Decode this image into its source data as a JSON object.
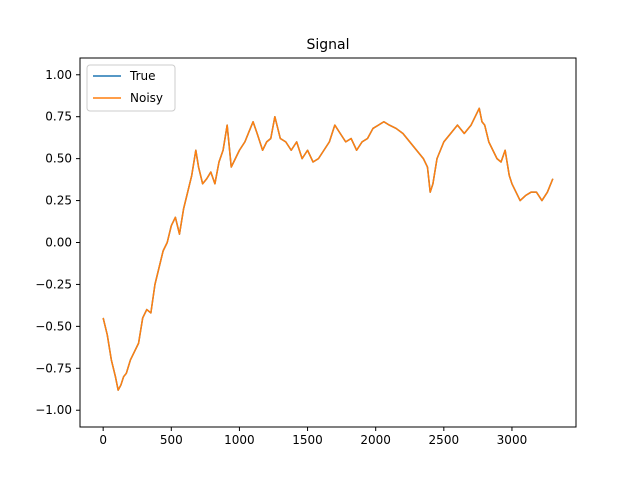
{
  "chart_data": {
    "type": "line",
    "title": "Signal",
    "xlabel": "",
    "ylabel": "",
    "xlim": [
      -170,
      3470
    ],
    "ylim": [
      -1.1,
      1.1
    ],
    "xticks": [
      0,
      500,
      1000,
      1500,
      2000,
      2500,
      3000
    ],
    "xtick_labels": [
      "0",
      "500",
      "1000",
      "1500",
      "2000",
      "2500",
      "3000"
    ],
    "yticks": [
      -1.0,
      -0.75,
      -0.5,
      -0.25,
      0.0,
      0.25,
      0.5,
      0.75,
      1.0
    ],
    "ytick_labels": [
      "−1.00",
      "−0.75",
      "−0.50",
      "−0.25",
      "0.00",
      "0.25",
      "0.50",
      "0.75",
      "1.00"
    ],
    "grid": false,
    "legend_position": "top-left",
    "series": [
      {
        "name": "True",
        "color": "#1f77b4",
        "x": [
          0,
          30,
          60,
          90,
          110,
          130,
          150,
          170,
          200,
          230,
          260,
          290,
          320,
          350,
          380,
          410,
          440,
          470,
          500,
          530,
          560,
          590,
          620,
          650,
          680,
          700,
          730,
          760,
          790,
          820,
          850,
          880,
          910,
          940,
          970,
          1000,
          1040,
          1080,
          1100,
          1130,
          1170,
          1200,
          1230,
          1260,
          1300,
          1340,
          1380,
          1420,
          1460,
          1500,
          1540,
          1580,
          1620,
          1660,
          1700,
          1740,
          1780,
          1820,
          1860,
          1900,
          1940,
          1980,
          2020,
          2060,
          2100,
          2150,
          2200,
          2250,
          2300,
          2350,
          2380,
          2400,
          2420,
          2450,
          2500,
          2550,
          2600,
          2650,
          2700,
          2730,
          2760,
          2780,
          2800,
          2830,
          2860,
          2890,
          2920,
          2950,
          2980,
          3000,
          3030,
          3060,
          3100,
          3140,
          3180,
          3220,
          3260,
          3300
        ],
        "y": [
          -0.45,
          -0.55,
          -0.7,
          -0.8,
          -0.88,
          -0.85,
          -0.8,
          -0.78,
          -0.7,
          -0.65,
          -0.6,
          -0.45,
          -0.4,
          -0.42,
          -0.25,
          -0.15,
          -0.05,
          0.0,
          0.1,
          0.15,
          0.05,
          0.2,
          0.3,
          0.4,
          0.55,
          0.45,
          0.35,
          0.38,
          0.42,
          0.35,
          0.48,
          0.55,
          0.7,
          0.45,
          0.5,
          0.55,
          0.6,
          0.68,
          0.72,
          0.65,
          0.55,
          0.6,
          0.62,
          0.75,
          0.62,
          0.6,
          0.55,
          0.6,
          0.5,
          0.55,
          0.48,
          0.5,
          0.55,
          0.6,
          0.7,
          0.65,
          0.6,
          0.62,
          0.55,
          0.6,
          0.62,
          0.68,
          0.7,
          0.72,
          0.7,
          0.68,
          0.65,
          0.6,
          0.55,
          0.5,
          0.45,
          0.3,
          0.35,
          0.5,
          0.6,
          0.65,
          0.7,
          0.65,
          0.7,
          0.75,
          0.8,
          0.72,
          0.7,
          0.6,
          0.55,
          0.5,
          0.48,
          0.55,
          0.4,
          0.35,
          0.3,
          0.25,
          0.28,
          0.3,
          0.3,
          0.25,
          0.3,
          0.38
        ]
      },
      {
        "name": "Noisy",
        "color": "#ff7f0e",
        "x": [
          0,
          30,
          60,
          90,
          110,
          130,
          150,
          170,
          200,
          230,
          260,
          290,
          320,
          350,
          380,
          410,
          440,
          470,
          500,
          530,
          560,
          590,
          620,
          650,
          680,
          700,
          730,
          760,
          790,
          820,
          850,
          880,
          910,
          940,
          970,
          1000,
          1040,
          1080,
          1100,
          1130,
          1170,
          1200,
          1230,
          1260,
          1300,
          1340,
          1380,
          1420,
          1460,
          1500,
          1540,
          1580,
          1620,
          1660,
          1700,
          1740,
          1780,
          1820,
          1860,
          1900,
          1940,
          1980,
          2020,
          2060,
          2100,
          2150,
          2200,
          2250,
          2300,
          2350,
          2380,
          2400,
          2420,
          2450,
          2500,
          2550,
          2600,
          2650,
          2700,
          2730,
          2760,
          2780,
          2800,
          2830,
          2860,
          2890,
          2920,
          2950,
          2980,
          3000,
          3030,
          3060,
          3100,
          3140,
          3180,
          3220,
          3260,
          3300
        ],
        "y": [
          -0.45,
          -0.55,
          -0.7,
          -0.8,
          -0.88,
          -0.85,
          -0.8,
          -0.78,
          -0.7,
          -0.65,
          -0.6,
          -0.45,
          -0.4,
          -0.42,
          -0.25,
          -0.15,
          -0.05,
          0.0,
          0.1,
          0.15,
          0.05,
          0.2,
          0.3,
          0.4,
          0.55,
          0.45,
          0.35,
          0.38,
          0.42,
          0.35,
          0.48,
          0.55,
          0.7,
          0.45,
          0.5,
          0.55,
          0.6,
          0.68,
          0.72,
          0.65,
          0.55,
          0.6,
          0.62,
          0.75,
          0.62,
          0.6,
          0.55,
          0.6,
          0.5,
          0.55,
          0.48,
          0.5,
          0.55,
          0.6,
          0.7,
          0.65,
          0.6,
          0.62,
          0.55,
          0.6,
          0.62,
          0.68,
          0.7,
          0.72,
          0.7,
          0.68,
          0.65,
          0.6,
          0.55,
          0.5,
          0.45,
          0.3,
          0.35,
          0.5,
          0.6,
          0.65,
          0.7,
          0.65,
          0.7,
          0.75,
          0.8,
          0.72,
          0.7,
          0.6,
          0.55,
          0.5,
          0.48,
          0.55,
          0.4,
          0.35,
          0.3,
          0.25,
          0.28,
          0.3,
          0.3,
          0.25,
          0.3,
          0.38
        ]
      }
    ]
  }
}
